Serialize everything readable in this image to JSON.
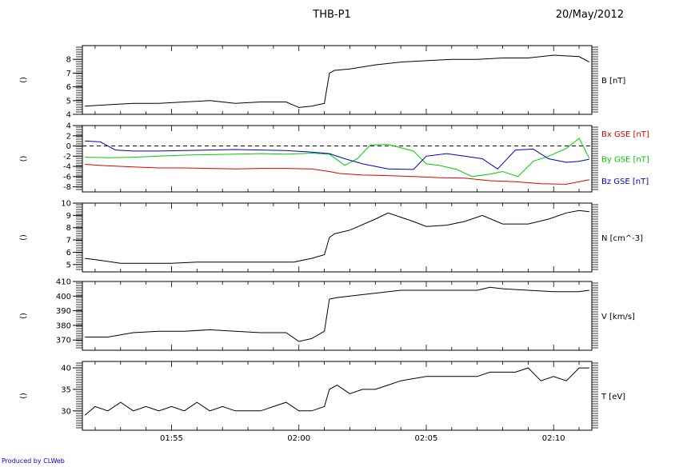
{
  "header": {
    "title": "THB-P1",
    "date": "20/May/2012"
  },
  "footer": {
    "credit": "Produced by CLWeb"
  },
  "chart_data": [
    {
      "type": "line",
      "ylabel": "B [nT]",
      "ylim": [
        4,
        9
      ],
      "yticks": [
        "4",
        "5",
        "6",
        "7",
        "8"
      ],
      "ytick_values": [
        4,
        5,
        6,
        7,
        8
      ],
      "left_label": "()",
      "xlim_minutes": [
        51.5,
        71.5
      ],
      "series": [
        {
          "name": "",
          "color": "#000000",
          "x": [
            51.6,
            52.5,
            53.5,
            54.5,
            55.5,
            56.5,
            57.5,
            58.5,
            59.5,
            60.0,
            60.5,
            61.0,
            61.2,
            61.4,
            62.0,
            63.0,
            64.0,
            65.0,
            66.0,
            67.0,
            68.0,
            69.0,
            70.0,
            71.0,
            71.4
          ],
          "y": [
            4.6,
            4.7,
            4.8,
            4.8,
            4.9,
            5.0,
            4.8,
            4.9,
            4.9,
            4.5,
            4.6,
            4.8,
            7.0,
            7.2,
            7.3,
            7.6,
            7.8,
            7.9,
            8.0,
            8.0,
            8.1,
            8.1,
            8.3,
            8.2,
            7.8
          ]
        }
      ]
    },
    {
      "type": "line",
      "ylabel": "",
      "ylim": [
        -9,
        4
      ],
      "yticks": [
        "4",
        "2",
        "0",
        "-2",
        "-4",
        "-6",
        "-8"
      ],
      "ytick_values": [
        4,
        2,
        0,
        -2,
        -4,
        -6,
        -8
      ],
      "left_label": "()",
      "zero_line": true,
      "xlim_minutes": [
        51.5,
        71.5
      ],
      "series": [
        {
          "name": "Bx GSE [nT]",
          "color": "#dd0000",
          "x": [
            51.6,
            52.5,
            53.5,
            54.5,
            55.5,
            56.5,
            57.5,
            58.5,
            59.5,
            60.5,
            61.2,
            61.6,
            62.5,
            63.5,
            64.5,
            65.5,
            66.5,
            67.5,
            68.5,
            69.5,
            70.5,
            71.4
          ],
          "y": [
            -3.6,
            -3.9,
            -4.1,
            -4.3,
            -4.3,
            -4.4,
            -4.5,
            -4.4,
            -4.4,
            -4.5,
            -5.0,
            -5.4,
            -5.7,
            -5.8,
            -6.0,
            -6.2,
            -6.3,
            -6.8,
            -7.0,
            -7.4,
            -7.5,
            -6.6
          ]
        },
        {
          "name": "By GSE [nT]",
          "color": "#00cc00",
          "x": [
            51.6,
            52.5,
            53.5,
            54.5,
            55.5,
            56.5,
            57.5,
            58.5,
            59.5,
            60.5,
            61.2,
            61.8,
            62.3,
            62.8,
            63.5,
            64.5,
            65.0,
            65.5,
            66.2,
            66.8,
            67.5,
            68.0,
            68.6,
            69.2,
            69.8,
            70.5,
            71.0,
            71.4
          ],
          "y": [
            -2.2,
            -2.3,
            -2.2,
            -2.0,
            -1.8,
            -1.7,
            -1.6,
            -1.5,
            -1.6,
            -1.4,
            -1.6,
            -3.8,
            -2.5,
            0.2,
            0.3,
            -1.0,
            -3.5,
            -3.8,
            -4.6,
            -6.0,
            -5.5,
            -5.0,
            -6.0,
            -3.0,
            -2.0,
            -0.5,
            1.5,
            -2.4
          ]
        },
        {
          "name": "Bz GSE [nT]",
          "color": "#0000cc",
          "x": [
            51.6,
            52.2,
            52.8,
            53.5,
            54.5,
            55.5,
            56.5,
            57.5,
            58.5,
            59.5,
            60.5,
            61.2,
            61.8,
            62.5,
            63.5,
            64.5,
            65.0,
            65.8,
            66.5,
            67.2,
            67.8,
            68.5,
            69.2,
            69.8,
            70.5,
            71.0,
            71.4
          ],
          "y": [
            1.0,
            0.8,
            -0.8,
            -1.0,
            -1.0,
            -0.9,
            -0.8,
            -0.7,
            -0.8,
            -0.9,
            -1.2,
            -1.5,
            -2.5,
            -3.5,
            -4.5,
            -4.6,
            -2.0,
            -1.5,
            -2.0,
            -2.5,
            -4.5,
            -0.8,
            -0.6,
            -2.5,
            -3.2,
            -3.0,
            -2.6
          ]
        }
      ]
    },
    {
      "type": "line",
      "ylabel": "N [cm^-3]",
      "ylim": [
        4.4,
        10
      ],
      "yticks": [
        "5",
        "6",
        "7",
        "8",
        "9",
        "10"
      ],
      "ytick_values": [
        5,
        6,
        7,
        8,
        9,
        10
      ],
      "left_label": "()",
      "xlim_minutes": [
        51.5,
        71.5
      ],
      "series": [
        {
          "name": "",
          "color": "#000000",
          "x": [
            51.6,
            52.0,
            53.0,
            54.0,
            55.0,
            56.0,
            57.0,
            58.0,
            59.0,
            59.8,
            60.5,
            61.0,
            61.2,
            61.4,
            62.0,
            63.0,
            63.5,
            64.5,
            65.0,
            65.8,
            66.5,
            67.2,
            68.0,
            68.5,
            69.0,
            69.8,
            70.5,
            71.0,
            71.4
          ],
          "y": [
            5.5,
            5.4,
            5.1,
            5.1,
            5.1,
            5.2,
            5.2,
            5.2,
            5.2,
            5.2,
            5.5,
            5.8,
            7.2,
            7.5,
            7.8,
            8.7,
            9.2,
            8.5,
            8.1,
            8.2,
            8.5,
            9.0,
            8.3,
            8.3,
            8.3,
            8.7,
            9.2,
            9.4,
            9.3
          ]
        }
      ]
    },
    {
      "type": "line",
      "ylabel": "V [km/s]",
      "ylim": [
        363,
        410
      ],
      "yticks": [
        "370",
        "380",
        "390",
        "400",
        "410"
      ],
      "ytick_values": [
        370,
        380,
        390,
        400,
        410
      ],
      "left_label": "()",
      "xlim_minutes": [
        51.5,
        71.5
      ],
      "series": [
        {
          "name": "",
          "color": "#000000",
          "x": [
            51.6,
            52.5,
            53.5,
            54.5,
            55.5,
            56.5,
            57.5,
            58.5,
            59.5,
            60.0,
            60.5,
            61.0,
            61.2,
            61.5,
            62.0,
            63.0,
            64.0,
            65.0,
            66.0,
            67.0,
            67.5,
            68.0,
            69.0,
            70.0,
            71.0,
            71.4
          ],
          "y": [
            372,
            372,
            375,
            376,
            376,
            377,
            376,
            375,
            375,
            369,
            371,
            376,
            398,
            399,
            400,
            402,
            404,
            404,
            404,
            404,
            406,
            405,
            404,
            403,
            403,
            404
          ]
        }
      ]
    },
    {
      "type": "line",
      "ylabel": "T [eV]",
      "ylim": [
        25.5,
        41.5
      ],
      "yticks": [
        "30",
        "35",
        "40"
      ],
      "ytick_values": [
        30,
        35,
        40
      ],
      "left_label": "()",
      "xlim_minutes": [
        51.5,
        71.5
      ],
      "xticks": [
        "01:55",
        "02:00",
        "02:05",
        "02:10"
      ],
      "xtick_values": [
        55,
        60,
        65,
        70
      ],
      "series": [
        {
          "name": "",
          "color": "#000000",
          "x": [
            51.6,
            52.0,
            52.5,
            53.0,
            53.5,
            54.0,
            54.5,
            55.0,
            55.5,
            56.0,
            56.5,
            57.0,
            57.5,
            58.0,
            58.5,
            59.0,
            59.5,
            60.0,
            60.5,
            61.0,
            61.2,
            61.5,
            62.0,
            62.5,
            63.0,
            63.5,
            64.0,
            65.0,
            66.0,
            67.0,
            67.5,
            68.0,
            68.5,
            69.0,
            69.5,
            70.0,
            70.5,
            71.0,
            71.4
          ],
          "y": [
            29,
            31,
            30,
            32,
            30,
            31,
            30,
            31,
            30,
            32,
            30,
            31,
            30,
            30,
            30,
            31,
            32,
            30,
            30,
            31,
            35,
            36,
            34,
            35,
            35,
            36,
            37,
            38,
            38,
            38,
            39,
            39,
            39,
            40,
            37,
            38,
            37,
            40,
            40
          ]
        }
      ]
    }
  ]
}
